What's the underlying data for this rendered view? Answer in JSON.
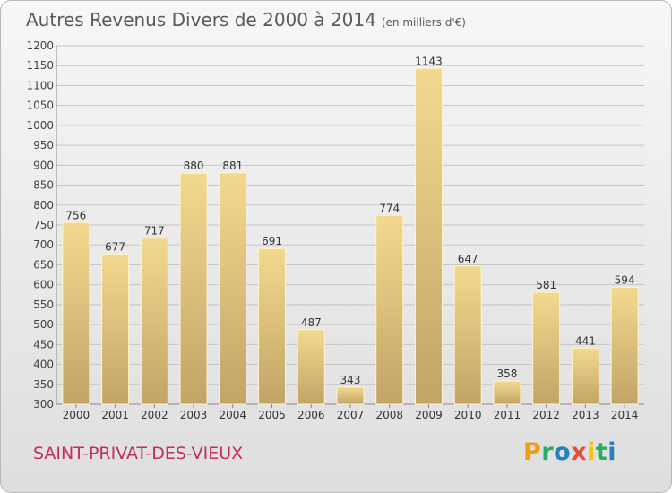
{
  "chart_data": {
    "type": "bar",
    "title": "Autres Revenus Divers de 2000 à 2014",
    "subtitle": "(en milliers d'€)",
    "categories": [
      "2000",
      "2001",
      "2002",
      "2003",
      "2004",
      "2005",
      "2006",
      "2007",
      "2008",
      "2009",
      "2010",
      "2011",
      "2012",
      "2013",
      "2014"
    ],
    "values": [
      756,
      677,
      717,
      880,
      881,
      691,
      487,
      343,
      774,
      1143,
      647,
      358,
      581,
      441,
      594
    ],
    "ylim": [
      300,
      1200
    ],
    "yticks": [
      300,
      350,
      400,
      450,
      500,
      550,
      600,
      650,
      700,
      750,
      800,
      850,
      900,
      950,
      1000,
      1050,
      1100,
      1150,
      1200
    ],
    "grid": true,
    "bar_color": "#e8c97f"
  },
  "town": "SAINT-PRIVAT-DES-VIEUX",
  "logo": {
    "letters": [
      "P",
      "r",
      "o",
      "x",
      "i",
      "t",
      "i"
    ],
    "colors": [
      "#f39c12",
      "#27ae60",
      "#2980b9",
      "#e74c3c",
      "#f1c40f",
      "#27ae60",
      "#2980b9"
    ]
  }
}
